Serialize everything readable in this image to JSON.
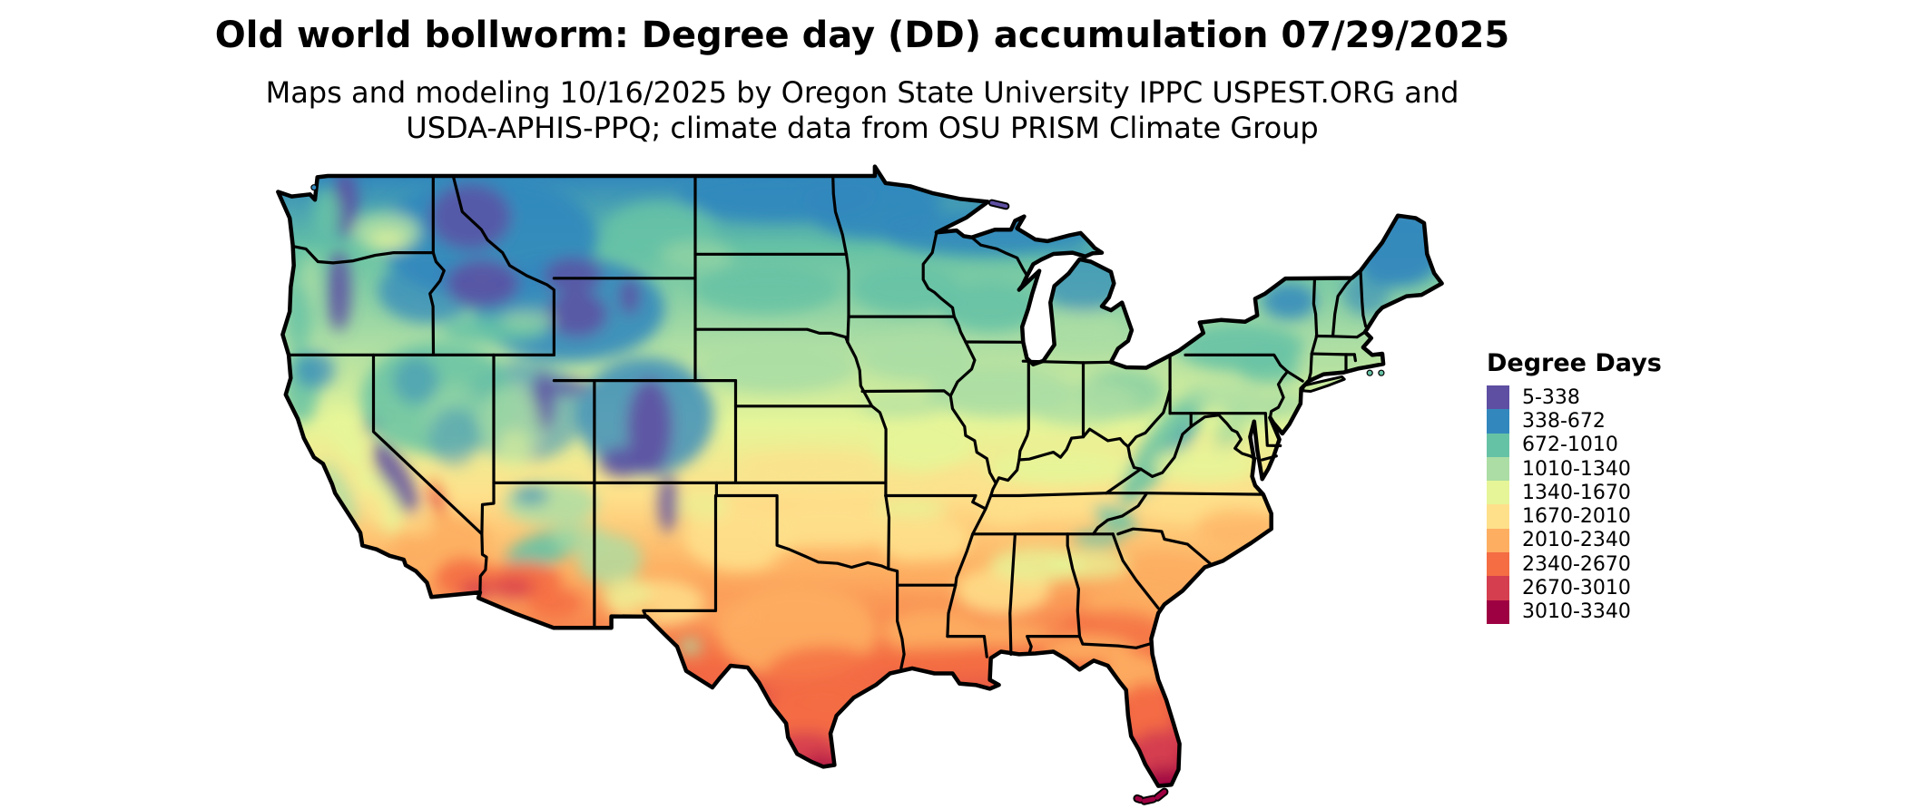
{
  "header": {
    "title": "Old world bollworm: Degree day (DD) accumulation 07/29/2025",
    "subtitle_line1": "Maps and modeling 10/16/2025 by Oregon State University IPPC USPEST.ORG and",
    "subtitle_line2": "USDA-APHIS-PPQ; climate data from OSU PRISM Climate Group"
  },
  "legend": {
    "title": "Degree Days",
    "items": [
      {
        "range": "5-338",
        "color": "#5e4fa2"
      },
      {
        "range": "338-672",
        "color": "#3288bd"
      },
      {
        "range": "672-1010",
        "color": "#66c2a5"
      },
      {
        "range": "1010-1340",
        "color": "#abdda4"
      },
      {
        "range": "1340-1670",
        "color": "#e6f598"
      },
      {
        "range": "1670-2010",
        "color": "#fee08b"
      },
      {
        "range": "2010-2340",
        "color": "#fdae61"
      },
      {
        "range": "2340-2670",
        "color": "#f46d43"
      },
      {
        "range": "2670-3010",
        "color": "#d53e4f"
      },
      {
        "range": "3010-3340",
        "color": "#9e0142"
      }
    ]
  },
  "map": {
    "kind": "degree-day accumulation raster map of the continental United States",
    "boundary_color": "#000000",
    "background_color": "#ffffff"
  }
}
